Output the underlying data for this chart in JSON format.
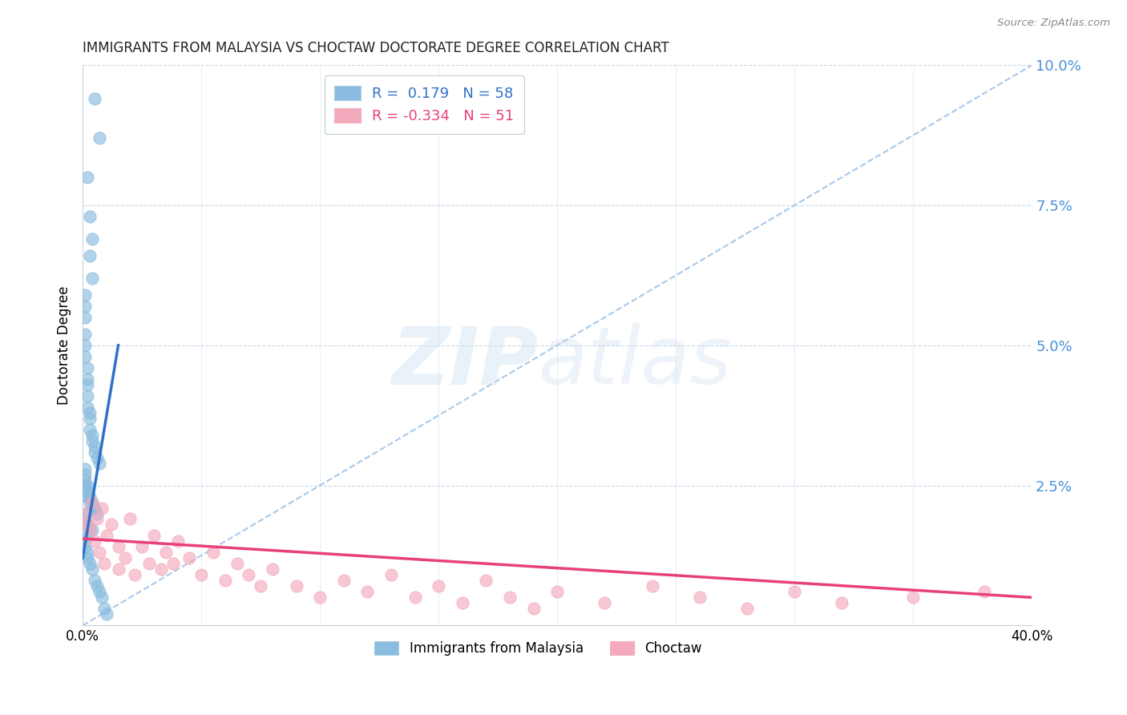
{
  "title": "IMMIGRANTS FROM MALAYSIA VS CHOCTAW DOCTORATE DEGREE CORRELATION CHART",
  "source": "Source: ZipAtlas.com",
  "ylabel": "Doctorate Degree",
  "xlim": [
    0.0,
    0.4
  ],
  "ylim": [
    0.0,
    0.1
  ],
  "xticks": [
    0.0,
    0.05,
    0.1,
    0.15,
    0.2,
    0.25,
    0.3,
    0.35,
    0.4
  ],
  "xtick_labels": [
    "0.0%",
    "",
    "",
    "",
    "",
    "",
    "",
    "",
    "40.0%"
  ],
  "yticks_right": [
    0.0,
    0.025,
    0.05,
    0.075,
    0.1
  ],
  "ytick_labels_right": [
    "",
    "2.5%",
    "5.0%",
    "7.5%",
    "10.0%"
  ],
  "blue_R": 0.179,
  "blue_N": 58,
  "pink_R": -0.334,
  "pink_N": 51,
  "blue_scatter_color": "#89bcde",
  "pink_scatter_color": "#f4aabc",
  "blue_line_color": "#3070c8",
  "pink_line_color": "#e8407a",
  "dashed_line_color": "#a8c8e8",
  "legend_label_blue": "Immigrants from Malaysia",
  "legend_label_pink": "Choctaw",
  "blue_scatter_x": [
    0.005,
    0.007,
    0.002,
    0.003,
    0.004,
    0.003,
    0.004,
    0.001,
    0.001,
    0.001,
    0.001,
    0.001,
    0.001,
    0.002,
    0.002,
    0.002,
    0.002,
    0.002,
    0.003,
    0.003,
    0.003,
    0.004,
    0.004,
    0.005,
    0.005,
    0.006,
    0.007,
    0.001,
    0.001,
    0.001,
    0.001,
    0.002,
    0.002,
    0.002,
    0.003,
    0.003,
    0.004,
    0.004,
    0.005,
    0.006,
    0.001,
    0.001,
    0.002,
    0.003,
    0.004,
    0.002,
    0.001,
    0.001,
    0.002,
    0.002,
    0.003,
    0.004,
    0.005,
    0.006,
    0.007,
    0.008,
    0.009,
    0.01
  ],
  "blue_scatter_y": [
    0.094,
    0.087,
    0.08,
    0.073,
    0.069,
    0.066,
    0.062,
    0.059,
    0.057,
    0.055,
    0.052,
    0.05,
    0.048,
    0.046,
    0.044,
    0.043,
    0.041,
    0.039,
    0.038,
    0.037,
    0.035,
    0.034,
    0.033,
    0.032,
    0.031,
    0.03,
    0.029,
    0.028,
    0.027,
    0.026,
    0.025,
    0.025,
    0.024,
    0.023,
    0.023,
    0.022,
    0.022,
    0.021,
    0.021,
    0.02,
    0.02,
    0.019,
    0.018,
    0.017,
    0.017,
    0.016,
    0.015,
    0.014,
    0.013,
    0.012,
    0.011,
    0.01,
    0.008,
    0.007,
    0.006,
    0.005,
    0.003,
    0.002
  ],
  "pink_scatter_x": [
    0.001,
    0.002,
    0.003,
    0.004,
    0.005,
    0.006,
    0.007,
    0.008,
    0.009,
    0.01,
    0.012,
    0.015,
    0.018,
    0.02,
    0.022,
    0.025,
    0.028,
    0.03,
    0.033,
    0.035,
    0.038,
    0.04,
    0.045,
    0.05,
    0.055,
    0.06,
    0.065,
    0.07,
    0.075,
    0.08,
    0.09,
    0.1,
    0.11,
    0.12,
    0.13,
    0.14,
    0.15,
    0.16,
    0.17,
    0.18,
    0.19,
    0.2,
    0.22,
    0.24,
    0.26,
    0.28,
    0.3,
    0.32,
    0.35,
    0.38,
    0.015
  ],
  "pink_scatter_y": [
    0.02,
    0.018,
    0.017,
    0.022,
    0.015,
    0.019,
    0.013,
    0.021,
    0.011,
    0.016,
    0.018,
    0.014,
    0.012,
    0.019,
    0.009,
    0.014,
    0.011,
    0.016,
    0.01,
    0.013,
    0.011,
    0.015,
    0.012,
    0.009,
    0.013,
    0.008,
    0.011,
    0.009,
    0.007,
    0.01,
    0.007,
    0.005,
    0.008,
    0.006,
    0.009,
    0.005,
    0.007,
    0.004,
    0.008,
    0.005,
    0.003,
    0.006,
    0.004,
    0.007,
    0.005,
    0.003,
    0.006,
    0.004,
    0.005,
    0.006,
    0.01
  ],
  "blue_trendline_x": [
    0.0,
    0.015
  ],
  "blue_trendline_y": [
    0.012,
    0.05
  ],
  "pink_trendline_x": [
    0.0,
    0.4
  ],
  "pink_trendline_y": [
    0.0155,
    0.005
  ],
  "dashed_line_x": [
    0.0,
    0.4
  ],
  "dashed_line_y": [
    0.0,
    0.1
  ]
}
